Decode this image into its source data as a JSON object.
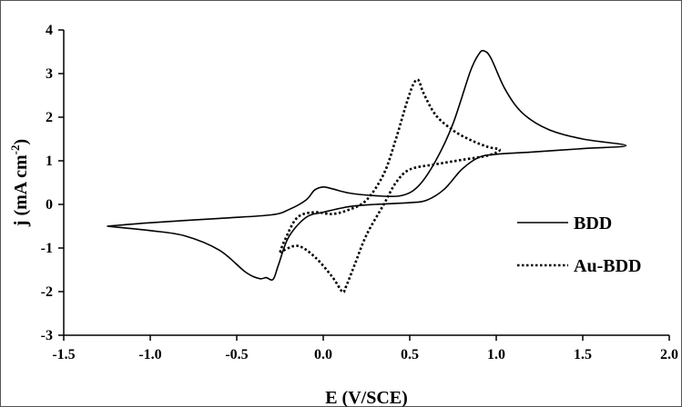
{
  "chart_data": {
    "type": "line",
    "title": "",
    "xlabel": "E (V/SCE)",
    "ylabel": "j (mA cm-2)",
    "ylabel_parts": {
      "main": "j (mA cm",
      "sup": "-2",
      "end": ")"
    },
    "xlim": [
      -1.5,
      2.0
    ],
    "ylim": [
      -3,
      4
    ],
    "x_ticks": [
      -1.5,
      -1.0,
      -0.5,
      0.0,
      0.5,
      1.0,
      1.5,
      2.0
    ],
    "x_tick_labels": [
      "-1.5",
      "-1.0",
      "-0.5",
      "0.0",
      "0.5",
      "1.0",
      "1.5",
      "2.0"
    ],
    "y_ticks": [
      -3,
      -2,
      -1,
      0,
      1,
      2,
      3,
      4
    ],
    "y_tick_labels": [
      "-3",
      "-2",
      "-1",
      "0",
      "1",
      "2",
      "3",
      "4"
    ],
    "grid": false,
    "legend_position": "right",
    "series": [
      {
        "name": "BDD",
        "style": "solid",
        "color": "#000000",
        "points": [
          [
            -1.25,
            -0.5
          ],
          [
            -1.0,
            -0.42
          ],
          [
            -0.6,
            -0.32
          ],
          [
            -0.3,
            -0.24
          ],
          [
            -0.2,
            -0.12
          ],
          [
            -0.1,
            0.1
          ],
          [
            -0.05,
            0.33
          ],
          [
            0.0,
            0.4
          ],
          [
            0.05,
            0.36
          ],
          [
            0.15,
            0.26
          ],
          [
            0.3,
            0.2
          ],
          [
            0.45,
            0.2
          ],
          [
            0.55,
            0.42
          ],
          [
            0.65,
            1.0
          ],
          [
            0.75,
            1.85
          ],
          [
            0.85,
            3.05
          ],
          [
            0.9,
            3.45
          ],
          [
            0.93,
            3.52
          ],
          [
            0.97,
            3.35
          ],
          [
            1.05,
            2.65
          ],
          [
            1.15,
            2.1
          ],
          [
            1.3,
            1.72
          ],
          [
            1.5,
            1.5
          ],
          [
            1.75,
            1.35
          ],
          [
            1.5,
            1.28
          ],
          [
            1.2,
            1.2
          ],
          [
            1.0,
            1.15
          ],
          [
            0.9,
            1.08
          ],
          [
            0.8,
            0.8
          ],
          [
            0.7,
            0.35
          ],
          [
            0.6,
            0.1
          ],
          [
            0.5,
            0.04
          ],
          [
            0.3,
            0.0
          ],
          [
            0.15,
            -0.05
          ],
          [
            0.0,
            -0.18
          ],
          [
            -0.1,
            -0.3
          ],
          [
            -0.2,
            -0.75
          ],
          [
            -0.26,
            -1.4
          ],
          [
            -0.29,
            -1.72
          ],
          [
            -0.33,
            -1.68
          ],
          [
            -0.37,
            -1.7
          ],
          [
            -0.45,
            -1.55
          ],
          [
            -0.6,
            -1.05
          ],
          [
            -0.8,
            -0.72
          ],
          [
            -1.0,
            -0.6
          ],
          [
            -1.25,
            -0.5
          ]
        ]
      },
      {
        "name": "Au-BDD",
        "style": "dotted",
        "color": "#000000",
        "points": [
          [
            -0.25,
            -1.1
          ],
          [
            -0.22,
            -0.8
          ],
          [
            -0.15,
            -0.3
          ],
          [
            -0.05,
            -0.18
          ],
          [
            0.05,
            -0.22
          ],
          [
            0.15,
            -0.12
          ],
          [
            0.25,
            0.1
          ],
          [
            0.35,
            0.7
          ],
          [
            0.42,
            1.5
          ],
          [
            0.48,
            2.3
          ],
          [
            0.52,
            2.75
          ],
          [
            0.55,
            2.85
          ],
          [
            0.58,
            2.55
          ],
          [
            0.65,
            2.05
          ],
          [
            0.75,
            1.7
          ],
          [
            0.85,
            1.48
          ],
          [
            0.95,
            1.32
          ],
          [
            1.02,
            1.25
          ],
          [
            0.95,
            1.12
          ],
          [
            0.8,
            1.02
          ],
          [
            0.65,
            0.92
          ],
          [
            0.5,
            0.8
          ],
          [
            0.42,
            0.5
          ],
          [
            0.35,
            0.0
          ],
          [
            0.25,
            -0.7
          ],
          [
            0.18,
            -1.4
          ],
          [
            0.13,
            -1.9
          ],
          [
            0.11,
            -2.0
          ],
          [
            0.05,
            -1.65
          ],
          [
            -0.05,
            -1.2
          ],
          [
            -0.15,
            -0.95
          ],
          [
            -0.25,
            -1.1
          ]
        ]
      }
    ]
  }
}
